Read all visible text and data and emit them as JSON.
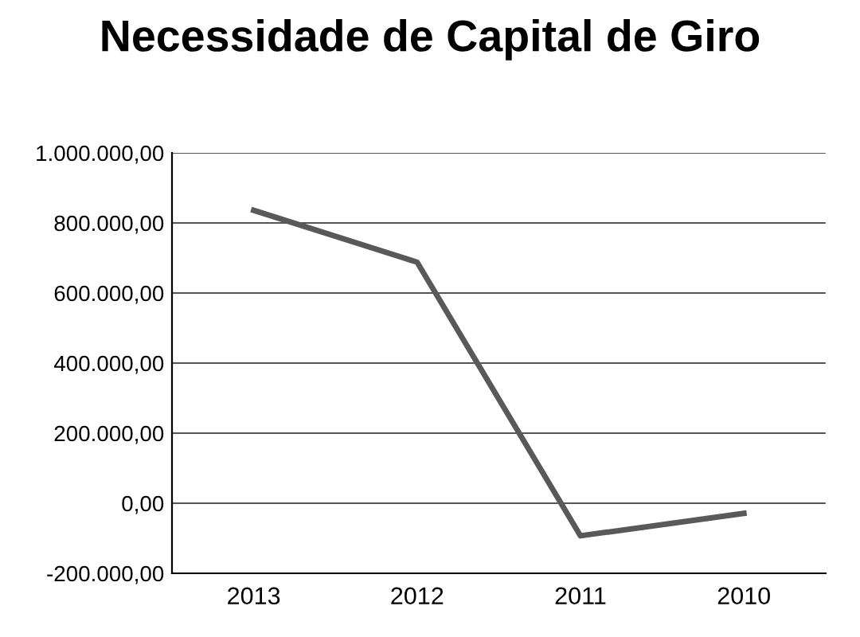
{
  "chart_data": {
    "type": "line",
    "title": "Necessidade de Capital de Giro",
    "categories": [
      "2013",
      "2012",
      "2011",
      "2010"
    ],
    "series": [
      {
        "color": "#595959",
        "values": [
          836000,
          688000,
          -93000,
          -29000
        ]
      }
    ],
    "ylim": [
      -200000,
      1000000
    ],
    "yticks": [
      {
        "value": -200000,
        "label": "-200.000,00"
      },
      {
        "value": 0,
        "label": "0,00"
      },
      {
        "value": 200000,
        "label": "200.000,00"
      },
      {
        "value": 400000,
        "label": "400.000,00"
      },
      {
        "value": 600000,
        "label": "600.000,00"
      },
      {
        "value": 800000,
        "label": "800.000,00"
      },
      {
        "value": 1000000,
        "label": "1.000.000,00"
      }
    ],
    "grid": "y",
    "legend": false,
    "marker": "none",
    "line_style": "solid"
  }
}
